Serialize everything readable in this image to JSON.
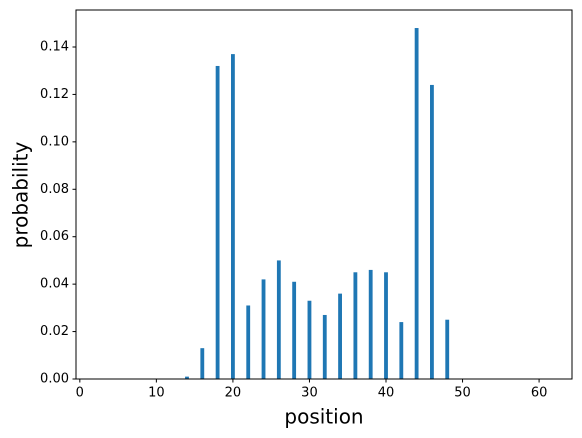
{
  "chart_data": {
    "type": "bar",
    "x_label": "position",
    "y_label": "probability",
    "x": [
      14,
      16,
      18,
      20,
      22,
      24,
      26,
      28,
      30,
      32,
      34,
      36,
      38,
      40,
      42,
      44,
      46,
      48
    ],
    "values": [
      0.001,
      0.013,
      0.132,
      0.137,
      0.031,
      0.042,
      0.05,
      0.041,
      0.033,
      0.027,
      0.036,
      0.045,
      0.046,
      0.045,
      0.024,
      0.148,
      0.124,
      0.025
    ],
    "color": "#1f77b4",
    "xlim": [
      -0.5,
      64.3
    ],
    "xticks": [
      0,
      10,
      20,
      30,
      40,
      50,
      60
    ],
    "ylim": [
      0,
      0.1556
    ],
    "yticks": [
      {
        "value": 0,
        "label": "0.00"
      },
      {
        "value": 0.02,
        "label": "0.02"
      },
      {
        "value": 0.04,
        "label": "0.04"
      },
      {
        "value": 0.06,
        "label": "0.06"
      },
      {
        "value": 0.08,
        "label": "0.08"
      },
      {
        "value": 0.1,
        "label": "0.10"
      },
      {
        "value": 0.12,
        "label": "0.12"
      },
      {
        "value": 0.14,
        "label": "0.14"
      }
    ],
    "grid": false
  }
}
